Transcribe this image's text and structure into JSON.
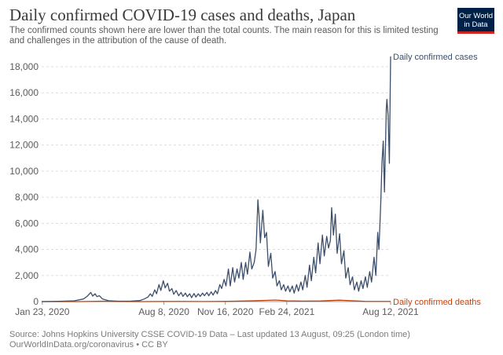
{
  "header": {
    "title": "Daily confirmed COVID-19 cases and deaths, Japan",
    "subtitle": "The confirmed counts shown here are lower than the total counts. The main reason for this is limited testing and challenges in the attribution of the cause of death.",
    "logo_line1": "Our World",
    "logo_line2": "in Data"
  },
  "footer": {
    "source": "Source: Johns Hopkins University CSSE COVID-19 Data – Last updated 13 August, 09:25 (London time)",
    "credit": "OurWorldInData.org/coronavirus • CC BY"
  },
  "colors": {
    "cases": "#3c4e6a",
    "deaths": "#c1440e",
    "grid": "#dddddd",
    "axis": "#999999"
  },
  "chart_data": {
    "type": "line",
    "title": "Daily confirmed COVID-19 cases and deaths, Japan",
    "x_axis": {
      "type": "date",
      "range": [
        "2020-01-22",
        "2021-08-12"
      ],
      "ticks": [
        {
          "date": "2020-01-23",
          "label": "Jan 23, 2020"
        },
        {
          "date": "2020-08-08",
          "label": "Aug 8, 2020"
        },
        {
          "date": "2020-11-16",
          "label": "Nov 16, 2020"
        },
        {
          "date": "2021-02-24",
          "label": "Feb 24, 2021"
        },
        {
          "date": "2021-08-12",
          "label": "Aug 12, 2021"
        }
      ]
    },
    "y_axis": {
      "range": [
        0,
        18000
      ],
      "ticks": [
        0,
        2000,
        4000,
        6000,
        8000,
        10000,
        12000,
        14000,
        16000,
        18000
      ],
      "tick_labels": [
        "0",
        "2,000",
        "4,000",
        "6,000",
        "8,000",
        "10,000",
        "12,000",
        "14,000",
        "16,000",
        "18,000"
      ]
    },
    "grid": true,
    "legend": "end-of-line labels",
    "series": [
      {
        "name": "Daily confirmed cases",
        "color": "#3c4e6a",
        "points": [
          [
            "2020-01-22",
            0
          ],
          [
            "2020-02-10",
            10
          ],
          [
            "2020-02-25",
            30
          ],
          [
            "2020-03-15",
            60
          ],
          [
            "2020-03-30",
            200
          ],
          [
            "2020-04-05",
            400
          ],
          [
            "2020-04-11",
            700
          ],
          [
            "2020-04-14",
            420
          ],
          [
            "2020-04-18",
            600
          ],
          [
            "2020-04-21",
            380
          ],
          [
            "2020-04-25",
            450
          ],
          [
            "2020-04-30",
            200
          ],
          [
            "2020-05-10",
            70
          ],
          [
            "2020-05-25",
            30
          ],
          [
            "2020-06-15",
            40
          ],
          [
            "2020-06-30",
            80
          ],
          [
            "2020-07-07",
            200
          ],
          [
            "2020-07-13",
            350
          ],
          [
            "2020-07-17",
            600
          ],
          [
            "2020-07-20",
            400
          ],
          [
            "2020-07-24",
            900
          ],
          [
            "2020-07-27",
            600
          ],
          [
            "2020-07-31",
            1300
          ],
          [
            "2020-08-03",
            850
          ],
          [
            "2020-08-07",
            1600
          ],
          [
            "2020-08-10",
            1050
          ],
          [
            "2020-08-14",
            1400
          ],
          [
            "2020-08-17",
            800
          ],
          [
            "2020-08-21",
            1000
          ],
          [
            "2020-08-24",
            560
          ],
          [
            "2020-08-28",
            850
          ],
          [
            "2020-09-01",
            450
          ],
          [
            "2020-09-05",
            700
          ],
          [
            "2020-09-08",
            400
          ],
          [
            "2020-09-12",
            650
          ],
          [
            "2020-09-15",
            380
          ],
          [
            "2020-09-19",
            600
          ],
          [
            "2020-09-22",
            300
          ],
          [
            "2020-09-26",
            620
          ],
          [
            "2020-09-29",
            350
          ],
          [
            "2020-10-03",
            600
          ],
          [
            "2020-10-06",
            400
          ],
          [
            "2020-10-10",
            650
          ],
          [
            "2020-10-13",
            450
          ],
          [
            "2020-10-17",
            700
          ],
          [
            "2020-10-20",
            450
          ],
          [
            "2020-10-24",
            750
          ],
          [
            "2020-10-27",
            500
          ],
          [
            "2020-10-31",
            850
          ],
          [
            "2020-11-03",
            600
          ],
          [
            "2020-11-07",
            1300
          ],
          [
            "2020-11-10",
            1000
          ],
          [
            "2020-11-14",
            1700
          ],
          [
            "2020-11-17",
            1200
          ],
          [
            "2020-11-21",
            2500
          ],
          [
            "2020-11-24",
            1200
          ],
          [
            "2020-11-28",
            2600
          ],
          [
            "2020-12-01",
            1500
          ],
          [
            "2020-12-05",
            2500
          ],
          [
            "2020-12-08",
            1800
          ],
          [
            "2020-12-12",
            3000
          ],
          [
            "2020-12-15",
            1700
          ],
          [
            "2020-12-19",
            3000
          ],
          [
            "2020-12-22",
            2100
          ],
          [
            "2020-12-26",
            3800
          ],
          [
            "2020-12-29",
            2500
          ],
          [
            "2021-01-02",
            3000
          ],
          [
            "2021-01-05",
            4000
          ],
          [
            "2021-01-08",
            7800
          ],
          [
            "2021-01-10",
            6500
          ],
          [
            "2021-01-12",
            4500
          ],
          [
            "2021-01-16",
            7000
          ],
          [
            "2021-01-19",
            4900
          ],
          [
            "2021-01-22",
            5300
          ],
          [
            "2021-01-25",
            2700
          ],
          [
            "2021-01-29",
            3700
          ],
          [
            "2021-02-01",
            1800
          ],
          [
            "2021-02-05",
            2300
          ],
          [
            "2021-02-08",
            1200
          ],
          [
            "2021-02-12",
            1600
          ],
          [
            "2021-02-15",
            900
          ],
          [
            "2021-02-19",
            1300
          ],
          [
            "2021-02-22",
            800
          ],
          [
            "2021-02-26",
            1200
          ],
          [
            "2021-03-01",
            750
          ],
          [
            "2021-03-05",
            1200
          ],
          [
            "2021-03-08",
            650
          ],
          [
            "2021-03-12",
            1300
          ],
          [
            "2021-03-15",
            800
          ],
          [
            "2021-03-19",
            1500
          ],
          [
            "2021-03-22",
            900
          ],
          [
            "2021-03-26",
            2000
          ],
          [
            "2021-03-29",
            1100
          ],
          [
            "2021-04-02",
            2800
          ],
          [
            "2021-04-05",
            1600
          ],
          [
            "2021-04-09",
            3400
          ],
          [
            "2021-04-12",
            2200
          ],
          [
            "2021-04-16",
            4500
          ],
          [
            "2021-04-19",
            2900
          ],
          [
            "2021-04-23",
            5100
          ],
          [
            "2021-04-26",
            3500
          ],
          [
            "2021-04-30",
            5000
          ],
          [
            "2021-05-03",
            4100
          ],
          [
            "2021-05-06",
            4700
          ],
          [
            "2021-05-08",
            7200
          ],
          [
            "2021-05-11",
            5100
          ],
          [
            "2021-05-14",
            6700
          ],
          [
            "2021-05-17",
            3700
          ],
          [
            "2021-05-21",
            5200
          ],
          [
            "2021-05-24",
            2900
          ],
          [
            "2021-05-28",
            3900
          ],
          [
            "2021-05-31",
            1800
          ],
          [
            "2021-06-04",
            2600
          ],
          [
            "2021-06-07",
            1300
          ],
          [
            "2021-06-11",
            1900
          ],
          [
            "2021-06-14",
            900
          ],
          [
            "2021-06-18",
            1500
          ],
          [
            "2021-06-21",
            800
          ],
          [
            "2021-06-25",
            1600
          ],
          [
            "2021-06-28",
            1000
          ],
          [
            "2021-07-02",
            1900
          ],
          [
            "2021-07-05",
            1100
          ],
          [
            "2021-07-09",
            2300
          ],
          [
            "2021-07-12",
            1500
          ],
          [
            "2021-07-16",
            3400
          ],
          [
            "2021-07-19",
            2000
          ],
          [
            "2021-07-22",
            5300
          ],
          [
            "2021-07-24",
            4000
          ],
          [
            "2021-07-27",
            7600
          ],
          [
            "2021-07-29",
            10700
          ],
          [
            "2021-07-31",
            12300
          ],
          [
            "2021-08-02",
            8400
          ],
          [
            "2021-08-05",
            14800
          ],
          [
            "2021-08-06",
            15500
          ],
          [
            "2021-08-08",
            14200
          ],
          [
            "2021-08-10",
            10600
          ],
          [
            "2021-08-12",
            18800
          ]
        ]
      },
      {
        "name": "Daily confirmed deaths",
        "color": "#c1440e",
        "points": [
          [
            "2020-01-22",
            0
          ],
          [
            "2020-03-20",
            2
          ],
          [
            "2020-04-20",
            20
          ],
          [
            "2020-05-01",
            30
          ],
          [
            "2020-05-20",
            10
          ],
          [
            "2020-06-30",
            1
          ],
          [
            "2020-08-10",
            10
          ],
          [
            "2020-09-01",
            15
          ],
          [
            "2020-10-15",
            8
          ],
          [
            "2020-11-20",
            20
          ],
          [
            "2020-12-20",
            50
          ],
          [
            "2021-01-20",
            90
          ],
          [
            "2021-02-05",
            120
          ],
          [
            "2021-02-24",
            60
          ],
          [
            "2021-03-20",
            40
          ],
          [
            "2021-04-20",
            50
          ],
          [
            "2021-05-20",
            110
          ],
          [
            "2021-06-10",
            70
          ],
          [
            "2021-07-01",
            20
          ],
          [
            "2021-07-20",
            15
          ],
          [
            "2021-08-12",
            15
          ]
        ]
      }
    ]
  }
}
